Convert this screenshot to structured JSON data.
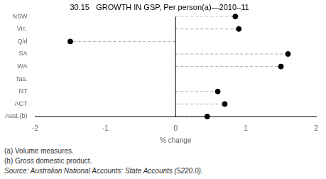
{
  "chart_data": {
    "type": "dot",
    "orientation": "horizontal",
    "title": "30.15   GROWTH IN GSP, Per person(a)—2010–11",
    "categories": [
      "NSW",
      "Vic.",
      "Qld",
      "SA",
      "WA",
      "Tas.",
      "NT",
      "ACT",
      "Aust.(b)"
    ],
    "values": [
      0.85,
      0.9,
      -1.5,
      1.6,
      1.5,
      null,
      0.6,
      0.7,
      0.45
    ],
    "xlabel": "% change",
    "xlim": [
      -2,
      2
    ],
    "xticks": [
      -2,
      -1,
      0,
      1,
      2
    ],
    "color": "#000000",
    "line_style": "dashed",
    "grid": false,
    "annotations": [
      "(a) Volume measures.",
      "(b) Gross domestic product.",
      "Source: Australian National Accounts: State Accounts (5220.0)."
    ]
  }
}
